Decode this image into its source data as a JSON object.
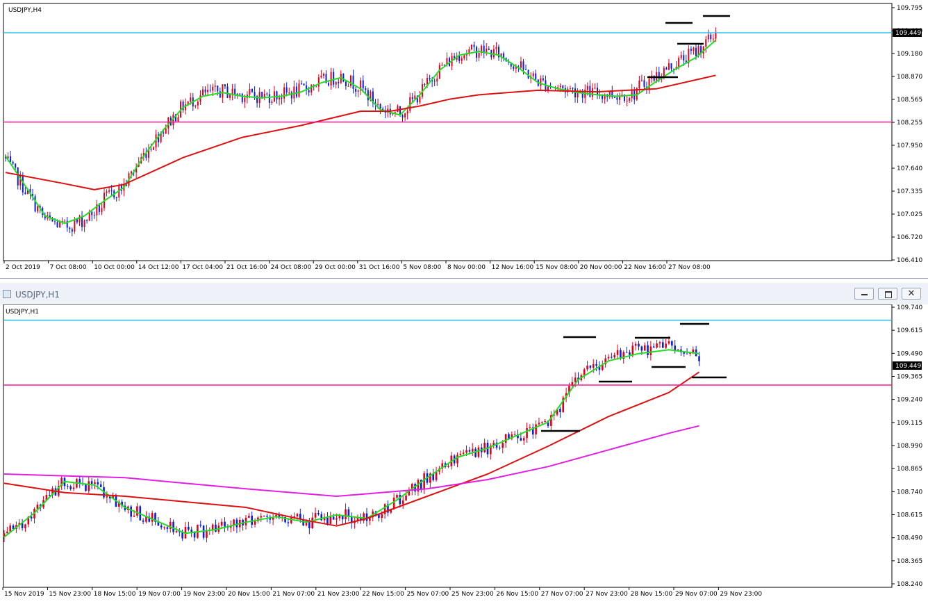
{
  "top_chart": {
    "symbol_label": "USDJPY,H4",
    "current_price": "109.449",
    "y_ticks": [
      "109.795",
      "109.490",
      "109.180",
      "108.870",
      "108.565",
      "108.255",
      "107.950",
      "107.640",
      "107.335",
      "107.025",
      "106.720",
      "106.410"
    ],
    "x_ticks": [
      "2 Oct 2019",
      "7 Oct 08:00",
      "10 Oct 00:00",
      "14 Oct 12:00",
      "17 Oct 04:00",
      "21 Oct 16:00",
      "24 Oct 08:00",
      "29 Oct 00:00",
      "31 Oct 16:00",
      "5 Nov 08:00",
      "8 Nov 00:00",
      "12 Nov 16:00",
      "15 Nov 08:00",
      "20 Nov 00:00",
      "22 Nov 16:00",
      "27 Nov 08:00"
    ]
  },
  "bottom_window": {
    "title": "USDJPY,H1",
    "minimize_icon": "minimize-icon",
    "restore_icon": "restore-icon",
    "close_icon": "close-icon"
  },
  "bottom_chart": {
    "symbol_label": "USDJPY,H1",
    "current_price": "109.449",
    "y_ticks": [
      "109.740",
      "109.615",
      "109.490",
      "109.365",
      "109.240",
      "109.115",
      "108.990",
      "108.865",
      "108.740",
      "108.615",
      "108.490",
      "108.365",
      "108.240"
    ],
    "x_ticks": [
      "15 Nov 2019",
      "15 Nov 23:00",
      "18 Nov 15:00",
      "19 Nov 07:00",
      "19 Nov 23:00",
      "20 Nov 15:00",
      "21 Nov 07:00",
      "21 Nov 23:00",
      "22 Nov 15:00",
      "25 Nov 07:00",
      "25 Nov 23:00",
      "26 Nov 15:00",
      "27 Nov 07:00",
      "27 Nov 23:00",
      "28 Nov 15:00",
      "29 Nov 07:00",
      "29 Nov 23:00"
    ]
  },
  "colors": {
    "bull": "#e0001b",
    "bear": "#0a1ee0",
    "ma_fast": "#22dd22",
    "ma_mid": "#dd1111",
    "ma_slow": "#e020e0",
    "resistance_line": "#21b6e8",
    "support_line": "#ff1493",
    "marker": "#000000"
  },
  "chart_data": [
    {
      "type": "candlestick",
      "symbol": "USDJPY",
      "timeframe": "H4",
      "ylim": [
        106.41,
        109.795
      ],
      "x_start": "2 Oct 2019",
      "x_end": "29 Nov 2019",
      "current_price": 109.449,
      "horizontal_lines": [
        109.45,
        108.255
      ],
      "series": [
        {
          "name": "",
          "points": [
            [
              0,
              107.8
            ],
            [
              8,
              107.4
            ],
            [
              16,
              107.0
            ],
            [
              24,
              106.9
            ],
            [
              32,
              107.0
            ],
            [
              40,
              107.2
            ],
            [
              48,
              107.38
            ],
            [
              56,
              107.8
            ],
            [
              64,
              108.15
            ],
            [
              72,
              108.45
            ],
            [
              80,
              108.6
            ],
            [
              88,
              108.65
            ],
            [
              96,
              108.6
            ],
            [
              104,
              108.58
            ],
            [
              112,
              108.6
            ],
            [
              120,
              108.66
            ],
            [
              128,
              108.78
            ],
            [
              136,
              108.85
            ],
            [
              144,
              108.7
            ],
            [
              152,
              108.42
            ],
            [
              160,
              108.35
            ],
            [
              168,
              108.62
            ],
            [
              176,
              108.95
            ],
            [
              184,
              109.15
            ],
            [
              192,
              109.2
            ],
            [
              200,
              109.15
            ],
            [
              208,
              108.98
            ],
            [
              216,
              108.78
            ],
            [
              224,
              108.7
            ],
            [
              232,
              108.65
            ],
            [
              240,
              108.62
            ],
            [
              248,
              108.6
            ],
            [
              256,
              108.62
            ],
            [
              264,
              108.8
            ],
            [
              272,
              108.97
            ],
            [
              280,
              109.12
            ],
            [
              288,
              109.35
            ]
          ]
        },
        {
          "name": "",
          "points": [
            [
              0,
              107.58
            ],
            [
              24,
              107.43
            ],
            [
              36,
              107.35
            ],
            [
              48,
              107.42
            ],
            [
              72,
              107.78
            ],
            [
              96,
              108.05
            ],
            [
              120,
              108.21
            ],
            [
              144,
              108.4
            ],
            [
              156,
              108.4
            ],
            [
              168,
              108.47
            ],
            [
              180,
              108.56
            ],
            [
              192,
              108.62
            ],
            [
              216,
              108.68
            ],
            [
              240,
              108.66
            ],
            [
              264,
              108.7
            ],
            [
              288,
              108.88
            ]
          ]
        }
      ]
    },
    {
      "type": "candlestick",
      "symbol": "USDJPY",
      "timeframe": "H1",
      "ylim": [
        108.24,
        109.74
      ],
      "x_start": "15 Nov 2019",
      "x_end": "29 Nov 2019",
      "current_price": 109.449,
      "horizontal_lines": [
        109.67,
        109.32
      ],
      "series": [
        {
          "name": "",
          "points": [
            [
              0,
              108.5
            ],
            [
              10,
              108.63
            ],
            [
              20,
              108.8
            ],
            [
              30,
              108.78
            ],
            [
              40,
              108.66
            ],
            [
              50,
              108.59
            ],
            [
              60,
              108.52
            ],
            [
              70,
              108.54
            ],
            [
              80,
              108.58
            ],
            [
              90,
              108.61
            ],
            [
              100,
              108.58
            ],
            [
              110,
              108.62
            ],
            [
              120,
              108.6
            ],
            [
              130,
              108.7
            ],
            [
              140,
              108.82
            ],
            [
              150,
              108.93
            ],
            [
              160,
              108.98
            ],
            [
              170,
              109.05
            ],
            [
              180,
              109.12
            ],
            [
              190,
              109.35
            ],
            [
              200,
              109.45
            ],
            [
              210,
              109.49
            ],
            [
              220,
              109.51
            ],
            [
              230,
              109.49
            ]
          ]
        },
        {
          "name": "",
          "points": [
            [
              0,
              108.79
            ],
            [
              20,
              108.74
            ],
            [
              40,
              108.72
            ],
            [
              60,
              108.69
            ],
            [
              80,
              108.66
            ],
            [
              100,
              108.59
            ],
            [
              110,
              108.56
            ],
            [
              120,
              108.6
            ],
            [
              140,
              108.72
            ],
            [
              160,
              108.84
            ],
            [
              180,
              108.99
            ],
            [
              200,
              109.15
            ],
            [
              220,
              109.28
            ],
            [
              230,
              109.39
            ]
          ]
        },
        {
          "name": "",
          "points": [
            [
              0,
              108.84
            ],
            [
              40,
              108.82
            ],
            [
              80,
              108.76
            ],
            [
              110,
              108.72
            ],
            [
              140,
              108.76
            ],
            [
              160,
              108.81
            ],
            [
              180,
              108.88
            ],
            [
              200,
              108.97
            ],
            [
              220,
              109.06
            ],
            [
              230,
              109.1
            ]
          ]
        }
      ]
    }
  ]
}
